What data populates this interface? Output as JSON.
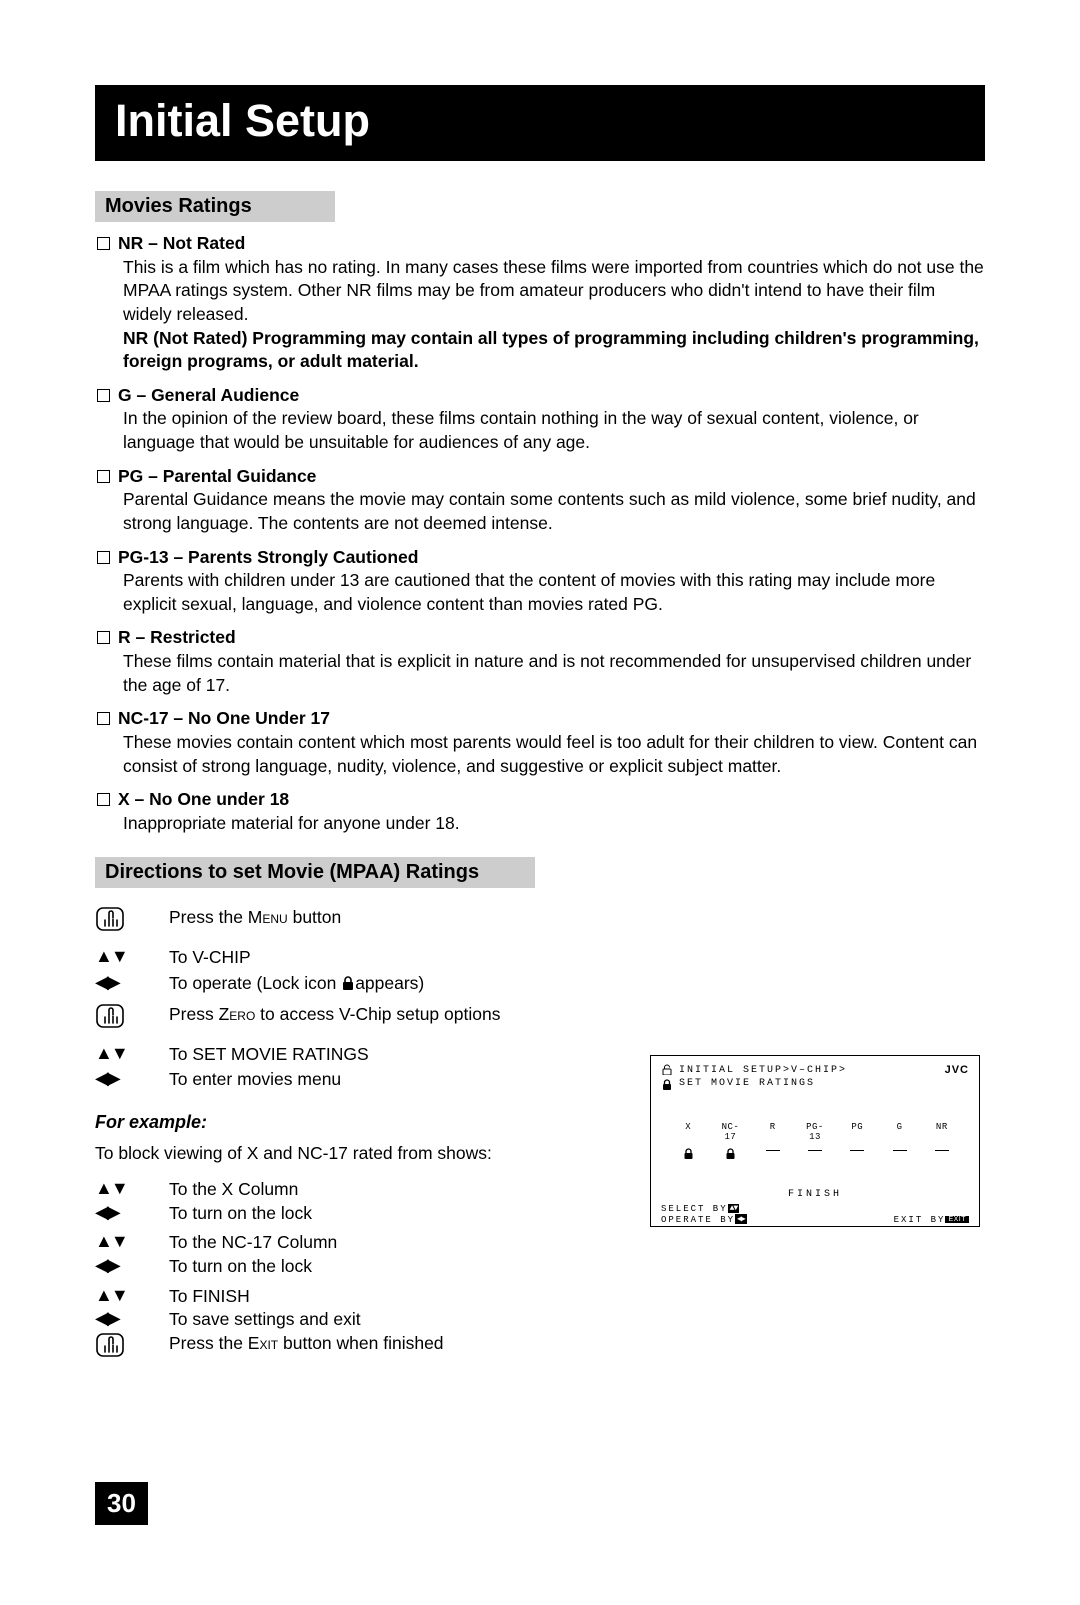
{
  "page": {
    "title": "Initial Setup",
    "page_number": "30"
  },
  "section1": {
    "header": "Movies Ratings",
    "ratings": [
      {
        "title": "NR – Not Rated",
        "desc": "This is a film which has no rating. In many cases these films were imported from countries which do not use the MPAA ratings system. Other NR films may be from amateur producers who didn't intend to have their film widely released.",
        "bold_desc": "NR (Not Rated) Programming may contain all types of programming including children's programming, foreign programs, or adult material."
      },
      {
        "title": "G – General Audience",
        "desc": "In the opinion of the review board, these films contain nothing in the way of sexual content, violence, or language that would be unsuitable for audiences of any age."
      },
      {
        "title": "PG – Parental Guidance",
        "desc": "Parental Guidance means the movie may contain some contents such as mild violence, some brief nudity, and strong language. The contents are not deemed intense."
      },
      {
        "title": "PG-13 – Parents Strongly Cautioned",
        "desc": "Parents with children under 13 are cautioned that the content of movies with this rating may include more explicit sexual, language, and violence content than movies rated PG."
      },
      {
        "title": "R – Restricted",
        "desc": "These films contain material that is explicit in nature and is not recommended for unsupervised children under the age of 17."
      },
      {
        "title": "NC-17 – No One Under 17",
        "desc": "These movies contain content which most parents would feel is too adult for their children to view. Content can consist of strong language, nudity, violence, and suggestive or explicit subject matter."
      },
      {
        "title": "X – No One under 18",
        "desc": "Inappropriate material for anyone under 18."
      }
    ]
  },
  "section2": {
    "header": "Directions to set Movie (MPAA) Ratings",
    "steps": [
      {
        "icon": "hand",
        "text_pre": "Press the ",
        "text_sc": "Menu",
        "text_post": " button"
      },
      {
        "icon": "updown",
        "text": "To V-CHIP"
      },
      {
        "icon": "leftright",
        "text_pre": "To operate (Lock icon ",
        "text_post": "appears)",
        "has_lock": true
      },
      {
        "icon": "hand",
        "text_pre": "Press ",
        "text_sc": "Zero",
        "text_post": " to access V-Chip setup options"
      },
      {
        "icon": "updown",
        "text": "To SET MOVIE RATINGS"
      },
      {
        "icon": "leftright",
        "text": "To enter movies menu"
      }
    ],
    "for_example_label": "For example:",
    "example_intro": "To block viewing of X and NC-17 rated from shows:",
    "example_steps": [
      {
        "icon": "updown",
        "text": "To the X Column"
      },
      {
        "icon": "leftright",
        "text": "To turn on the lock"
      },
      {
        "icon": "updown",
        "text": "To the NC-17 Column"
      },
      {
        "icon": "leftright",
        "text": "To turn on the lock"
      },
      {
        "icon": "updown",
        "text": "To FINISH"
      },
      {
        "icon": "leftright",
        "text": "To save settings and exit"
      },
      {
        "icon": "hand",
        "text_pre": "Press the ",
        "text_sc": "Exit",
        "text_post": " button when finished"
      }
    ]
  },
  "osd": {
    "line1": "INITIAL SETUP>V–CHIP>",
    "line2": "SET MOVIE RATINGS",
    "brand": "JVC",
    "columns": [
      "X",
      "NC-17",
      "R",
      "PG-13",
      "PG",
      "G",
      "NR"
    ],
    "locks": [
      "lock",
      "lock",
      "dash",
      "dash",
      "dash",
      "dash",
      "dash"
    ],
    "finish": "FINISH",
    "select_label": "SELECT  BY",
    "operate_label": "OPERATE BY",
    "exit_label": "EXIT BY",
    "exit_btn": "EXIT"
  }
}
